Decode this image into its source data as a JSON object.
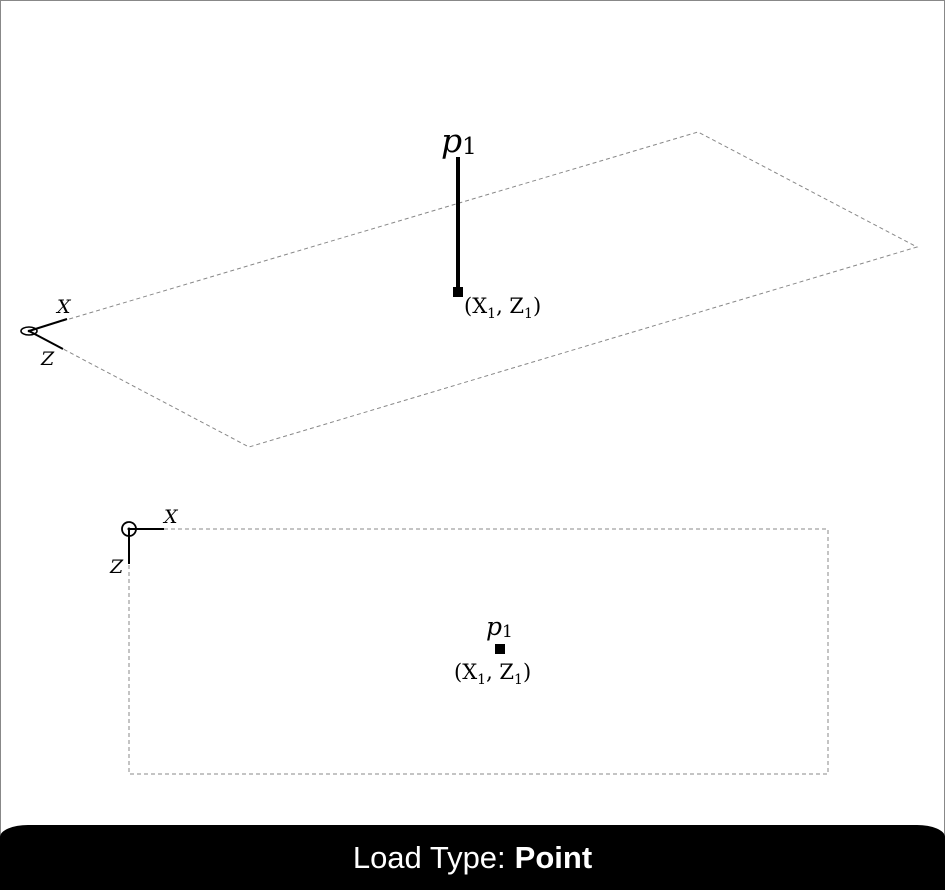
{
  "footer": {
    "label": "Load Type:",
    "value": "Point"
  },
  "isometric_view": {
    "load_label": "p",
    "load_label_sub": "1",
    "position_label": "(X",
    "position_sub1": "1",
    "position_mid": ", Z",
    "position_sub2": "1",
    "position_close": ")",
    "axis_x": "X",
    "axis_z": "Z"
  },
  "plan_view": {
    "load_label": "p",
    "load_label_sub": "1",
    "position_label": "(X",
    "position_sub1": "1",
    "position_mid": ", Z",
    "position_sub2": "1",
    "position_close": ")",
    "axis_x": "X",
    "axis_z": "Z"
  },
  "colors": {
    "line": "#000000",
    "dashed_outline": "#888888",
    "footer_bg": "#000000",
    "footer_text": "#ffffff"
  }
}
